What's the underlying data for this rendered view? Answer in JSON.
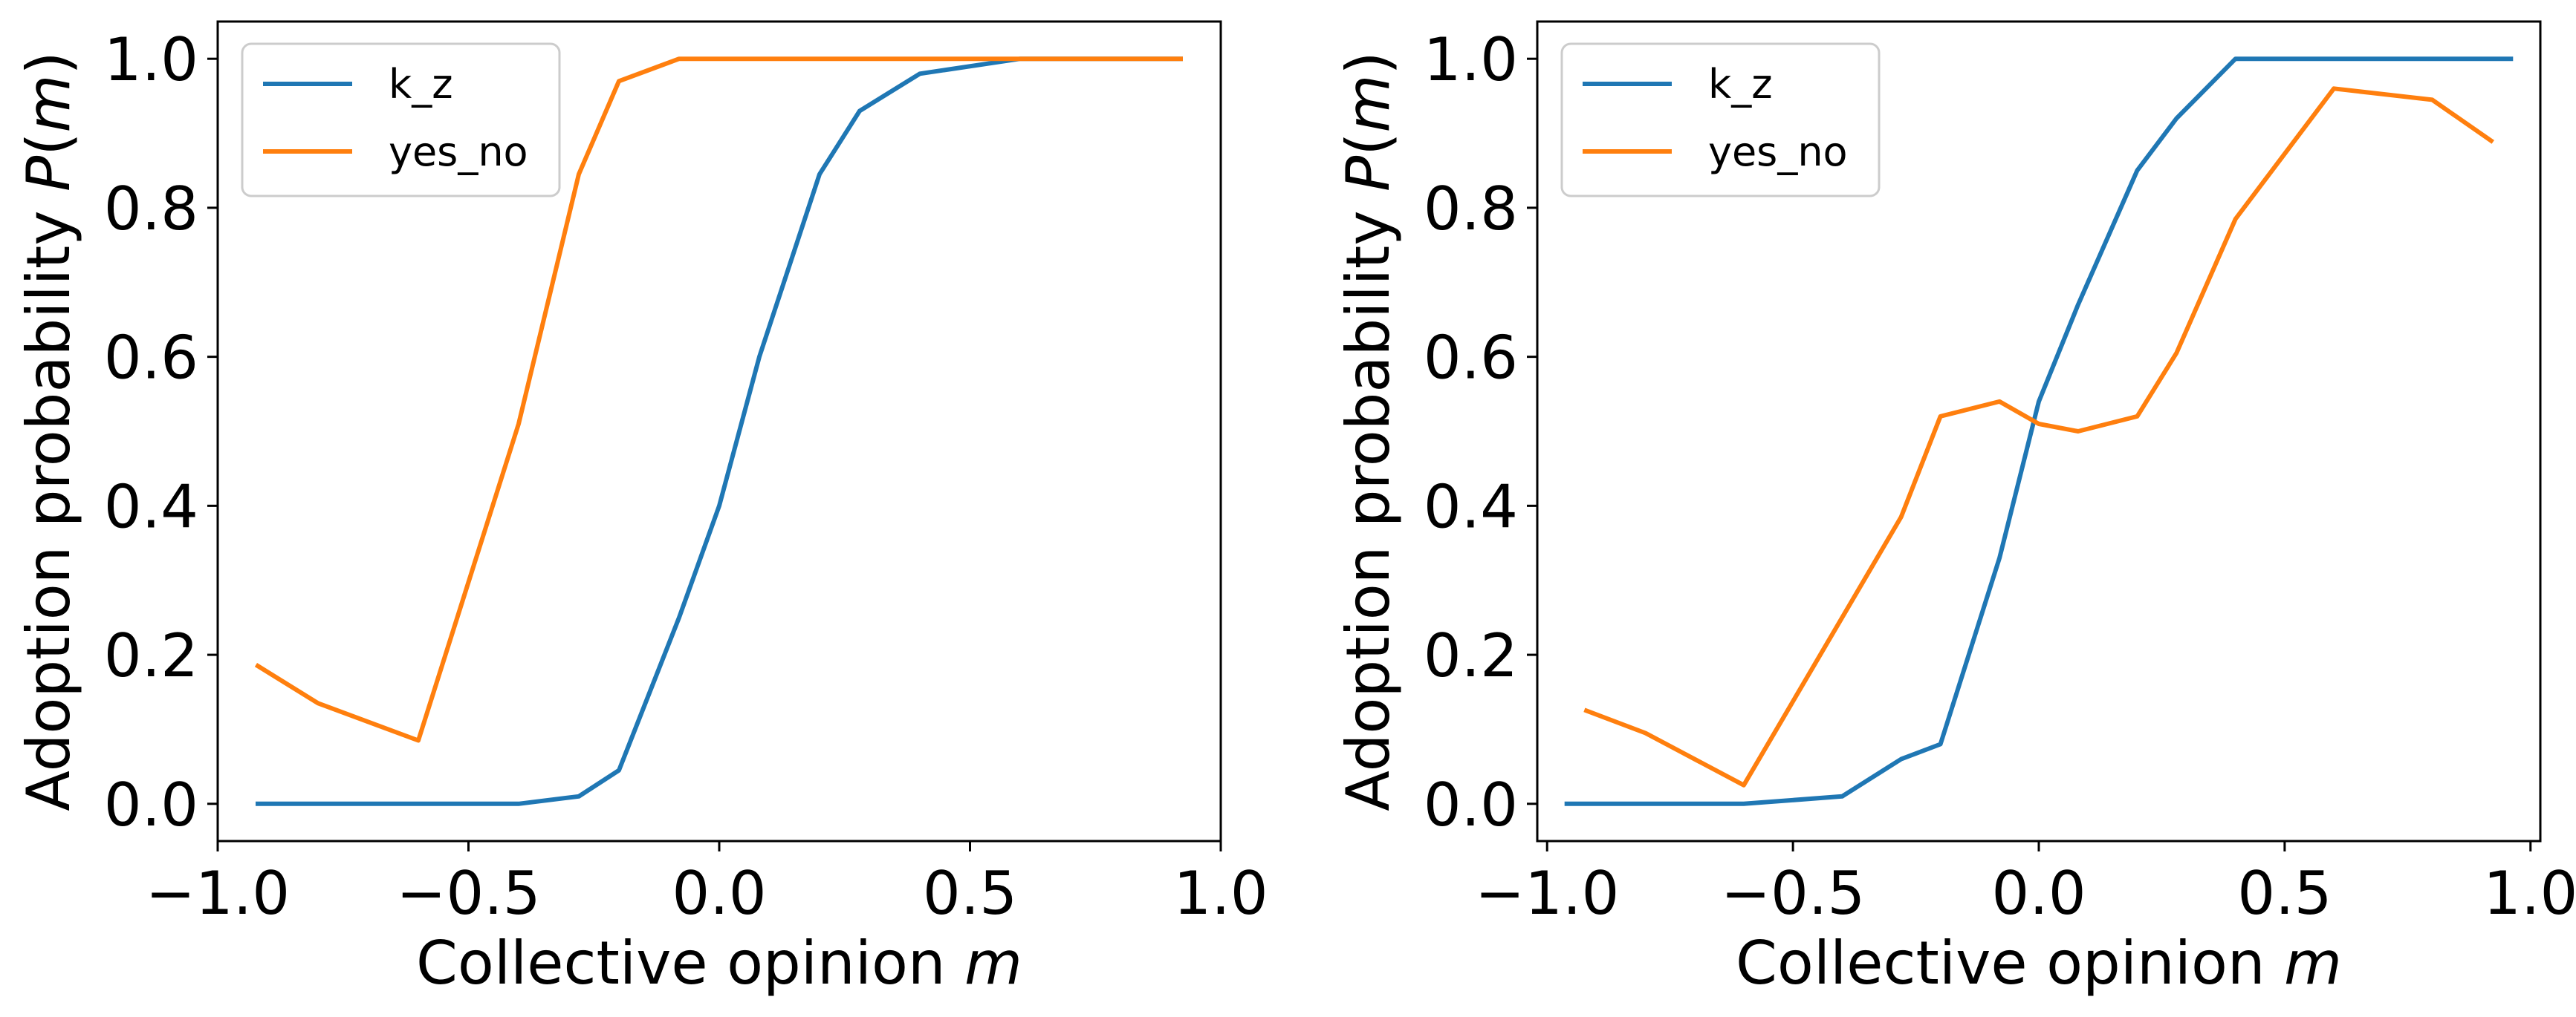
{
  "colors": {
    "k_z": "#1f77b4",
    "yes_no": "#ff7f0e"
  },
  "chart_data": [
    {
      "type": "line",
      "xlabel": "Collective opinion m",
      "xlabel_text": "Collective opinion ",
      "xlabel_var": "m",
      "ylabel": "Adoption probability P(m)",
      "ylabel_text": "Adoption probability ",
      "ylabel_var": "P",
      "ylabel_arg": "m",
      "xlim": [
        -1.0,
        1.0
      ],
      "ylim": [
        -0.05,
        1.05
      ],
      "xticks": [
        -1.0,
        -0.5,
        0.0,
        0.5,
        1.0
      ],
      "xtick_labels": [
        "−1.0",
        "−0.5",
        "0.0",
        "0.5",
        "1.0"
      ],
      "yticks": [
        0.0,
        0.2,
        0.4,
        0.6,
        0.8,
        1.0
      ],
      "ytick_labels": [
        "0.0",
        "0.2",
        "0.4",
        "0.6",
        "0.8",
        "1.0"
      ],
      "legend_position": "top-left",
      "series": [
        {
          "name": "k_z",
          "color_key": "k_z",
          "x": [
            -0.92,
            -0.8,
            -0.6,
            -0.4,
            -0.28,
            -0.2,
            -0.08,
            0.0,
            0.08,
            0.2,
            0.28,
            0.4,
            0.6,
            0.8,
            0.92
          ],
          "y": [
            0.0,
            0.0,
            0.0,
            0.0,
            0.01,
            0.045,
            0.25,
            0.4,
            0.6,
            0.845,
            0.93,
            0.98,
            1.0,
            1.0,
            1.0
          ]
        },
        {
          "name": "yes_no",
          "color_key": "yes_no",
          "x": [
            -0.92,
            -0.8,
            -0.6,
            -0.4,
            -0.28,
            -0.2,
            -0.08,
            0.0,
            0.08,
            0.2,
            0.28,
            0.4,
            0.6,
            0.8,
            0.92
          ],
          "y": [
            0.185,
            0.135,
            0.085,
            0.51,
            0.845,
            0.97,
            1.0,
            1.0,
            1.0,
            1.0,
            1.0,
            1.0,
            1.0,
            1.0,
            1.0
          ]
        }
      ]
    },
    {
      "type": "line",
      "xlabel": "Collective opinion m",
      "xlabel_text": "Collective opinion ",
      "xlabel_var": "m",
      "ylabel": "Adoption probability P(m)",
      "ylabel_text": "Adoption probability ",
      "ylabel_var": "P",
      "ylabel_arg": "m",
      "xlim": [
        -1.02,
        1.02
      ],
      "ylim": [
        -0.05,
        1.05
      ],
      "xticks": [
        -1.0,
        -0.5,
        0.0,
        0.5,
        1.0
      ],
      "xtick_labels": [
        "−1.0",
        "−0.5",
        "0.0",
        "0.5",
        "1.0"
      ],
      "yticks": [
        0.0,
        0.2,
        0.4,
        0.6,
        0.8,
        1.0
      ],
      "ytick_labels": [
        "0.0",
        "0.2",
        "0.4",
        "0.6",
        "0.8",
        "1.0"
      ],
      "legend_position": "top-left",
      "series": [
        {
          "name": "k_z",
          "color_key": "k_z",
          "x": [
            -0.96,
            -0.8,
            -0.6,
            -0.4,
            -0.28,
            -0.2,
            -0.08,
            0.0,
            0.08,
            0.2,
            0.28,
            0.4,
            0.6,
            0.8,
            0.96
          ],
          "y": [
            0.0,
            0.0,
            0.0,
            0.01,
            0.06,
            0.08,
            0.33,
            0.54,
            0.67,
            0.85,
            0.92,
            1.0,
            1.0,
            1.0,
            1.0
          ]
        },
        {
          "name": "yes_no",
          "color_key": "yes_no",
          "x": [
            -0.92,
            -0.8,
            -0.6,
            -0.4,
            -0.28,
            -0.2,
            -0.08,
            0.0,
            0.08,
            0.2,
            0.28,
            0.4,
            0.6,
            0.8,
            0.92
          ],
          "y": [
            0.125,
            0.095,
            0.025,
            0.25,
            0.385,
            0.52,
            0.54,
            0.51,
            0.5,
            0.52,
            0.605,
            0.785,
            0.96,
            0.945,
            0.89
          ]
        }
      ]
    }
  ]
}
